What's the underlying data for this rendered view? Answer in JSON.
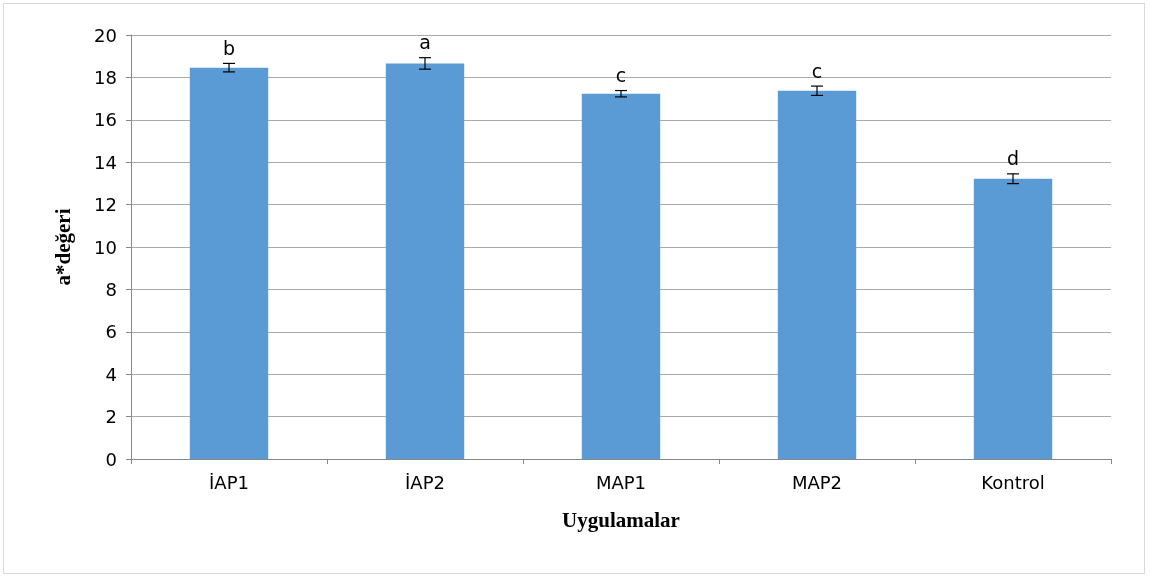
{
  "chart_data": {
    "type": "bar",
    "xlabel": "Uygulamalar",
    "ylabel": "a*değeri",
    "categories": [
      "İAP1",
      "İAP2",
      "MAP1",
      "MAP2",
      "Kontrol"
    ],
    "values": [
      18.46,
      18.66,
      17.23,
      17.37,
      13.22
    ],
    "errors": [
      0.2,
      0.27,
      0.15,
      0.22,
      0.23
    ],
    "color": "#5b9bd5",
    "ylim": [
      0,
      20
    ],
    "yticks": [
      0,
      2,
      4,
      6,
      8,
      10,
      12,
      14,
      16,
      18,
      20
    ],
    "grid": "y",
    "annotations": [
      {
        "text": "b",
        "x": "İAP1",
        "y": 18.46
      },
      {
        "text": "a",
        "x": "İAP2",
        "y": 18.66
      },
      {
        "text": "c",
        "x": "MAP1",
        "y": 17.23
      },
      {
        "text": "c",
        "x": "MAP2",
        "y": 17.37
      },
      {
        "text": "d",
        "x": "Kontrol",
        "y": 13.22
      }
    ]
  }
}
